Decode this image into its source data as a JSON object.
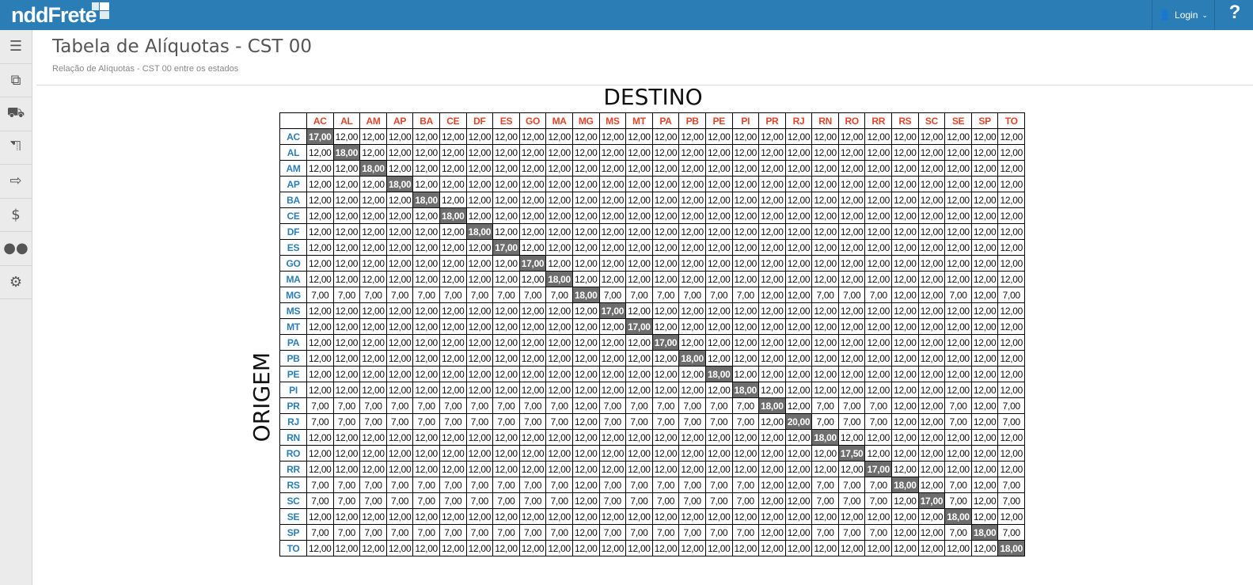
{
  "header": {
    "logo": "nddFrete",
    "login_label": "Login",
    "help_label": "?"
  },
  "sidebar": {
    "items": [
      {
        "icon": "menu-icon"
      },
      {
        "icon": "documents-icon"
      },
      {
        "icon": "truck-icon"
      },
      {
        "icon": "truck-outline-icon"
      },
      {
        "icon": "export-icon"
      },
      {
        "icon": "payment-hand-icon"
      },
      {
        "icon": "users-icon"
      },
      {
        "icon": "gears-icon"
      }
    ]
  },
  "page": {
    "title": "Tabela de Alíquotas - CST 00",
    "subtitle": "Relação de Alíquotas - CST 00 entre os estados"
  },
  "table": {
    "col_title": "DESTINO",
    "row_title": "ORIGEM",
    "states": [
      "AC",
      "AL",
      "AM",
      "AP",
      "BA",
      "CE",
      "DF",
      "ES",
      "GO",
      "MA",
      "MG",
      "MS",
      "MT",
      "PA",
      "PB",
      "PE",
      "PI",
      "PR",
      "RJ",
      "RN",
      "RO",
      "RR",
      "RS",
      "SC",
      "SE",
      "SP",
      "TO"
    ],
    "colors": {
      "header": "#e0452b",
      "row_header": "#2a7db5",
      "diagonal_bg": "#6e6e6e"
    },
    "rows": [
      [
        "17,00",
        "12,00",
        "12,00",
        "12,00",
        "12,00",
        "12,00",
        "12,00",
        "12,00",
        "12,00",
        "12,00",
        "12,00",
        "12,00",
        "12,00",
        "12,00",
        "12,00",
        "12,00",
        "12,00",
        "12,00",
        "12,00",
        "12,00",
        "12,00",
        "12,00",
        "12,00",
        "12,00",
        "12,00",
        "12,00",
        "12,00"
      ],
      [
        "12,00",
        "18,00",
        "12,00",
        "12,00",
        "12,00",
        "12,00",
        "12,00",
        "12,00",
        "12,00",
        "12,00",
        "12,00",
        "12,00",
        "12,00",
        "12,00",
        "12,00",
        "12,00",
        "12,00",
        "12,00",
        "12,00",
        "12,00",
        "12,00",
        "12,00",
        "12,00",
        "12,00",
        "12,00",
        "12,00",
        "12,00"
      ],
      [
        "12,00",
        "12,00",
        "18,00",
        "12,00",
        "12,00",
        "12,00",
        "12,00",
        "12,00",
        "12,00",
        "12,00",
        "12,00",
        "12,00",
        "12,00",
        "12,00",
        "12,00",
        "12,00",
        "12,00",
        "12,00",
        "12,00",
        "12,00",
        "12,00",
        "12,00",
        "12,00",
        "12,00",
        "12,00",
        "12,00",
        "12,00"
      ],
      [
        "12,00",
        "12,00",
        "12,00",
        "18,00",
        "12,00",
        "12,00",
        "12,00",
        "12,00",
        "12,00",
        "12,00",
        "12,00",
        "12,00",
        "12,00",
        "12,00",
        "12,00",
        "12,00",
        "12,00",
        "12,00",
        "12,00",
        "12,00",
        "12,00",
        "12,00",
        "12,00",
        "12,00",
        "12,00",
        "12,00",
        "12,00"
      ],
      [
        "12,00",
        "12,00",
        "12,00",
        "12,00",
        "18,00",
        "12,00",
        "12,00",
        "12,00",
        "12,00",
        "12,00",
        "12,00",
        "12,00",
        "12,00",
        "12,00",
        "12,00",
        "12,00",
        "12,00",
        "12,00",
        "12,00",
        "12,00",
        "12,00",
        "12,00",
        "12,00",
        "12,00",
        "12,00",
        "12,00",
        "12,00"
      ],
      [
        "12,00",
        "12,00",
        "12,00",
        "12,00",
        "12,00",
        "18,00",
        "12,00",
        "12,00",
        "12,00",
        "12,00",
        "12,00",
        "12,00",
        "12,00",
        "12,00",
        "12,00",
        "12,00",
        "12,00",
        "12,00",
        "12,00",
        "12,00",
        "12,00",
        "12,00",
        "12,00",
        "12,00",
        "12,00",
        "12,00",
        "12,00"
      ],
      [
        "12,00",
        "12,00",
        "12,00",
        "12,00",
        "12,00",
        "12,00",
        "18,00",
        "12,00",
        "12,00",
        "12,00",
        "12,00",
        "12,00",
        "12,00",
        "12,00",
        "12,00",
        "12,00",
        "12,00",
        "12,00",
        "12,00",
        "12,00",
        "12,00",
        "12,00",
        "12,00",
        "12,00",
        "12,00",
        "12,00",
        "12,00"
      ],
      [
        "12,00",
        "12,00",
        "12,00",
        "12,00",
        "12,00",
        "12,00",
        "12,00",
        "17,00",
        "12,00",
        "12,00",
        "12,00",
        "12,00",
        "12,00",
        "12,00",
        "12,00",
        "12,00",
        "12,00",
        "12,00",
        "12,00",
        "12,00",
        "12,00",
        "12,00",
        "12,00",
        "12,00",
        "12,00",
        "12,00",
        "12,00"
      ],
      [
        "12,00",
        "12,00",
        "12,00",
        "12,00",
        "12,00",
        "12,00",
        "12,00",
        "12,00",
        "17,00",
        "12,00",
        "12,00",
        "12,00",
        "12,00",
        "12,00",
        "12,00",
        "12,00",
        "12,00",
        "12,00",
        "12,00",
        "12,00",
        "12,00",
        "12,00",
        "12,00",
        "12,00",
        "12,00",
        "12,00",
        "12,00"
      ],
      [
        "12,00",
        "12,00",
        "12,00",
        "12,00",
        "12,00",
        "12,00",
        "12,00",
        "12,00",
        "12,00",
        "18,00",
        "12,00",
        "12,00",
        "12,00",
        "12,00",
        "12,00",
        "12,00",
        "12,00",
        "12,00",
        "12,00",
        "12,00",
        "12,00",
        "12,00",
        "12,00",
        "12,00",
        "12,00",
        "12,00",
        "12,00"
      ],
      [
        "7,00",
        "7,00",
        "7,00",
        "7,00",
        "7,00",
        "7,00",
        "7,00",
        "7,00",
        "7,00",
        "7,00",
        "18,00",
        "7,00",
        "7,00",
        "7,00",
        "7,00",
        "7,00",
        "7,00",
        "12,00",
        "12,00",
        "7,00",
        "7,00",
        "7,00",
        "12,00",
        "12,00",
        "7,00",
        "12,00",
        "7,00"
      ],
      [
        "12,00",
        "12,00",
        "12,00",
        "12,00",
        "12,00",
        "12,00",
        "12,00",
        "12,00",
        "12,00",
        "12,00",
        "12,00",
        "17,00",
        "12,00",
        "12,00",
        "12,00",
        "12,00",
        "12,00",
        "12,00",
        "12,00",
        "12,00",
        "12,00",
        "12,00",
        "12,00",
        "12,00",
        "12,00",
        "12,00",
        "12,00"
      ],
      [
        "12,00",
        "12,00",
        "12,00",
        "12,00",
        "12,00",
        "12,00",
        "12,00",
        "12,00",
        "12,00",
        "12,00",
        "12,00",
        "12,00",
        "17,00",
        "12,00",
        "12,00",
        "12,00",
        "12,00",
        "12,00",
        "12,00",
        "12,00",
        "12,00",
        "12,00",
        "12,00",
        "12,00",
        "12,00",
        "12,00",
        "12,00"
      ],
      [
        "12,00",
        "12,00",
        "12,00",
        "12,00",
        "12,00",
        "12,00",
        "12,00",
        "12,00",
        "12,00",
        "12,00",
        "12,00",
        "12,00",
        "12,00",
        "17,00",
        "12,00",
        "12,00",
        "12,00",
        "12,00",
        "12,00",
        "12,00",
        "12,00",
        "12,00",
        "12,00",
        "12,00",
        "12,00",
        "12,00",
        "12,00"
      ],
      [
        "12,00",
        "12,00",
        "12,00",
        "12,00",
        "12,00",
        "12,00",
        "12,00",
        "12,00",
        "12,00",
        "12,00",
        "12,00",
        "12,00",
        "12,00",
        "12,00",
        "18,00",
        "12,00",
        "12,00",
        "12,00",
        "12,00",
        "12,00",
        "12,00",
        "12,00",
        "12,00",
        "12,00",
        "12,00",
        "12,00",
        "12,00"
      ],
      [
        "12,00",
        "12,00",
        "12,00",
        "12,00",
        "12,00",
        "12,00",
        "12,00",
        "12,00",
        "12,00",
        "12,00",
        "12,00",
        "12,00",
        "12,00",
        "12,00",
        "12,00",
        "18,00",
        "12,00",
        "12,00",
        "12,00",
        "12,00",
        "12,00",
        "12,00",
        "12,00",
        "12,00",
        "12,00",
        "12,00",
        "12,00"
      ],
      [
        "12,00",
        "12,00",
        "12,00",
        "12,00",
        "12,00",
        "12,00",
        "12,00",
        "12,00",
        "12,00",
        "12,00",
        "12,00",
        "12,00",
        "12,00",
        "12,00",
        "12,00",
        "12,00",
        "18,00",
        "12,00",
        "12,00",
        "12,00",
        "12,00",
        "12,00",
        "12,00",
        "12,00",
        "12,00",
        "12,00",
        "12,00"
      ],
      [
        "7,00",
        "7,00",
        "7,00",
        "7,00",
        "7,00",
        "7,00",
        "7,00",
        "7,00",
        "7,00",
        "7,00",
        "12,00",
        "7,00",
        "7,00",
        "7,00",
        "7,00",
        "7,00",
        "7,00",
        "18,00",
        "12,00",
        "7,00",
        "7,00",
        "7,00",
        "12,00",
        "12,00",
        "7,00",
        "12,00",
        "7,00"
      ],
      [
        "7,00",
        "7,00",
        "7,00",
        "7,00",
        "7,00",
        "7,00",
        "7,00",
        "7,00",
        "7,00",
        "7,00",
        "12,00",
        "7,00",
        "7,00",
        "7,00",
        "7,00",
        "7,00",
        "7,00",
        "12,00",
        "20,00",
        "7,00",
        "7,00",
        "7,00",
        "12,00",
        "12,00",
        "7,00",
        "12,00",
        "7,00"
      ],
      [
        "12,00",
        "12,00",
        "12,00",
        "12,00",
        "12,00",
        "12,00",
        "12,00",
        "12,00",
        "12,00",
        "12,00",
        "12,00",
        "12,00",
        "12,00",
        "12,00",
        "12,00",
        "12,00",
        "12,00",
        "12,00",
        "12,00",
        "18,00",
        "12,00",
        "12,00",
        "12,00",
        "12,00",
        "12,00",
        "12,00",
        "12,00"
      ],
      [
        "12,00",
        "12,00",
        "12,00",
        "12,00",
        "12,00",
        "12,00",
        "12,00",
        "12,00",
        "12,00",
        "12,00",
        "12,00",
        "12,00",
        "12,00",
        "12,00",
        "12,00",
        "12,00",
        "12,00",
        "12,00",
        "12,00",
        "12,00",
        "17,50",
        "12,00",
        "12,00",
        "12,00",
        "12,00",
        "12,00",
        "12,00"
      ],
      [
        "12,00",
        "12,00",
        "12,00",
        "12,00",
        "12,00",
        "12,00",
        "12,00",
        "12,00",
        "12,00",
        "12,00",
        "12,00",
        "12,00",
        "12,00",
        "12,00",
        "12,00",
        "12,00",
        "12,00",
        "12,00",
        "12,00",
        "12,00",
        "12,00",
        "17,00",
        "12,00",
        "12,00",
        "12,00",
        "12,00",
        "12,00"
      ],
      [
        "7,00",
        "7,00",
        "7,00",
        "7,00",
        "7,00",
        "7,00",
        "7,00",
        "7,00",
        "7,00",
        "7,00",
        "12,00",
        "7,00",
        "7,00",
        "7,00",
        "7,00",
        "7,00",
        "7,00",
        "12,00",
        "12,00",
        "7,00",
        "7,00",
        "7,00",
        "18,00",
        "12,00",
        "7,00",
        "12,00",
        "7,00"
      ],
      [
        "7,00",
        "7,00",
        "7,00",
        "7,00",
        "7,00",
        "7,00",
        "7,00",
        "7,00",
        "7,00",
        "7,00",
        "12,00",
        "7,00",
        "7,00",
        "7,00",
        "7,00",
        "7,00",
        "7,00",
        "12,00",
        "12,00",
        "7,00",
        "7,00",
        "7,00",
        "12,00",
        "17,00",
        "7,00",
        "12,00",
        "7,00"
      ],
      [
        "12,00",
        "12,00",
        "12,00",
        "12,00",
        "12,00",
        "12,00",
        "12,00",
        "12,00",
        "12,00",
        "12,00",
        "12,00",
        "12,00",
        "12,00",
        "12,00",
        "12,00",
        "12,00",
        "12,00",
        "12,00",
        "12,00",
        "12,00",
        "12,00",
        "12,00",
        "12,00",
        "12,00",
        "18,00",
        "12,00",
        "12,00"
      ],
      [
        "7,00",
        "7,00",
        "7,00",
        "7,00",
        "7,00",
        "7,00",
        "7,00",
        "7,00",
        "7,00",
        "7,00",
        "12,00",
        "7,00",
        "7,00",
        "7,00",
        "7,00",
        "7,00",
        "7,00",
        "12,00",
        "12,00",
        "7,00",
        "7,00",
        "7,00",
        "12,00",
        "12,00",
        "7,00",
        "18,00",
        "7,00"
      ],
      [
        "12,00",
        "12,00",
        "12,00",
        "12,00",
        "12,00",
        "12,00",
        "12,00",
        "12,00",
        "12,00",
        "12,00",
        "12,00",
        "12,00",
        "12,00",
        "12,00",
        "12,00",
        "12,00",
        "12,00",
        "12,00",
        "12,00",
        "12,00",
        "12,00",
        "12,00",
        "12,00",
        "12,00",
        "12,00",
        "12,00",
        "18,00"
      ]
    ]
  }
}
